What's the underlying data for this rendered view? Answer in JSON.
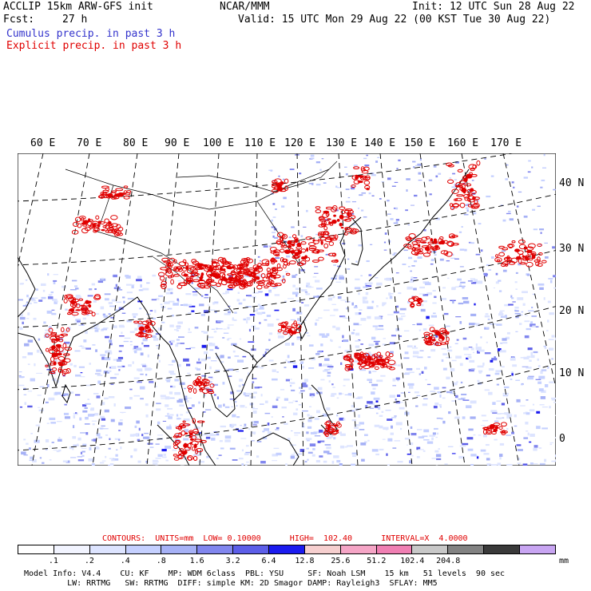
{
  "header": {
    "model": "ACCLIP 15km ARW-GFS init",
    "fcst_label": "Fcst:",
    "fcst_value": "27 h",
    "center": "NCAR/MMM",
    "init": "Init: 12 UTC Sun 28 Aug 22",
    "valid": "Valid: 15 UTC Mon 29 Aug 22 (00 KST Tue 30 Aug 22)",
    "cumulus": "Cumulus precip. in past 3 h",
    "explicit": "Explicit precip. in past 3 h"
  },
  "map": {
    "longitude_labels": [
      "60 E",
      "70 E",
      "80 E",
      "90 E",
      "100 E",
      "110 E",
      "120 E",
      "130 E",
      "140 E",
      "150 E",
      "160 E",
      "170 E"
    ],
    "latitude_labels": [
      "40 N",
      "30 N",
      "20 N",
      "10 N",
      "0"
    ]
  },
  "contours": {
    "title": "CONTOURS:  UNITS=mm  LOW= 0.10000      HIGH=  102.40      INTERVAL=X  4.0000"
  },
  "colorbar": {
    "colors": [
      "#ffffff",
      "#f2f4ff",
      "#dde4ff",
      "#c5d0ff",
      "#a6b1f6",
      "#8186ee",
      "#5c5ee8",
      "#1b1bef",
      "#f6cfcf",
      "#f5a5c6",
      "#f07fb3",
      "#c8c8c8",
      "#828282",
      "#3a3a3a",
      "#c8a5f2"
    ],
    "tick_labels": [
      ".1",
      ".2",
      ".4",
      ".8",
      "1.6",
      "3.2",
      "6.4",
      "12.8",
      "25.6",
      "51.2",
      "102.4",
      "204.8"
    ],
    "units": "mm"
  },
  "footer": {
    "line1": "Model Info: V4.4    CU: KF    MP: WDM 6class  PBL: YSU     SF: Noah LSM    15 km   51 levels  90 sec",
    "line2": "    LW: RRTMG   SW: RRTMG  DIFF: simple KM: 2D Smagor DAMP: Rayleigh3  SFLAY: MM5"
  }
}
